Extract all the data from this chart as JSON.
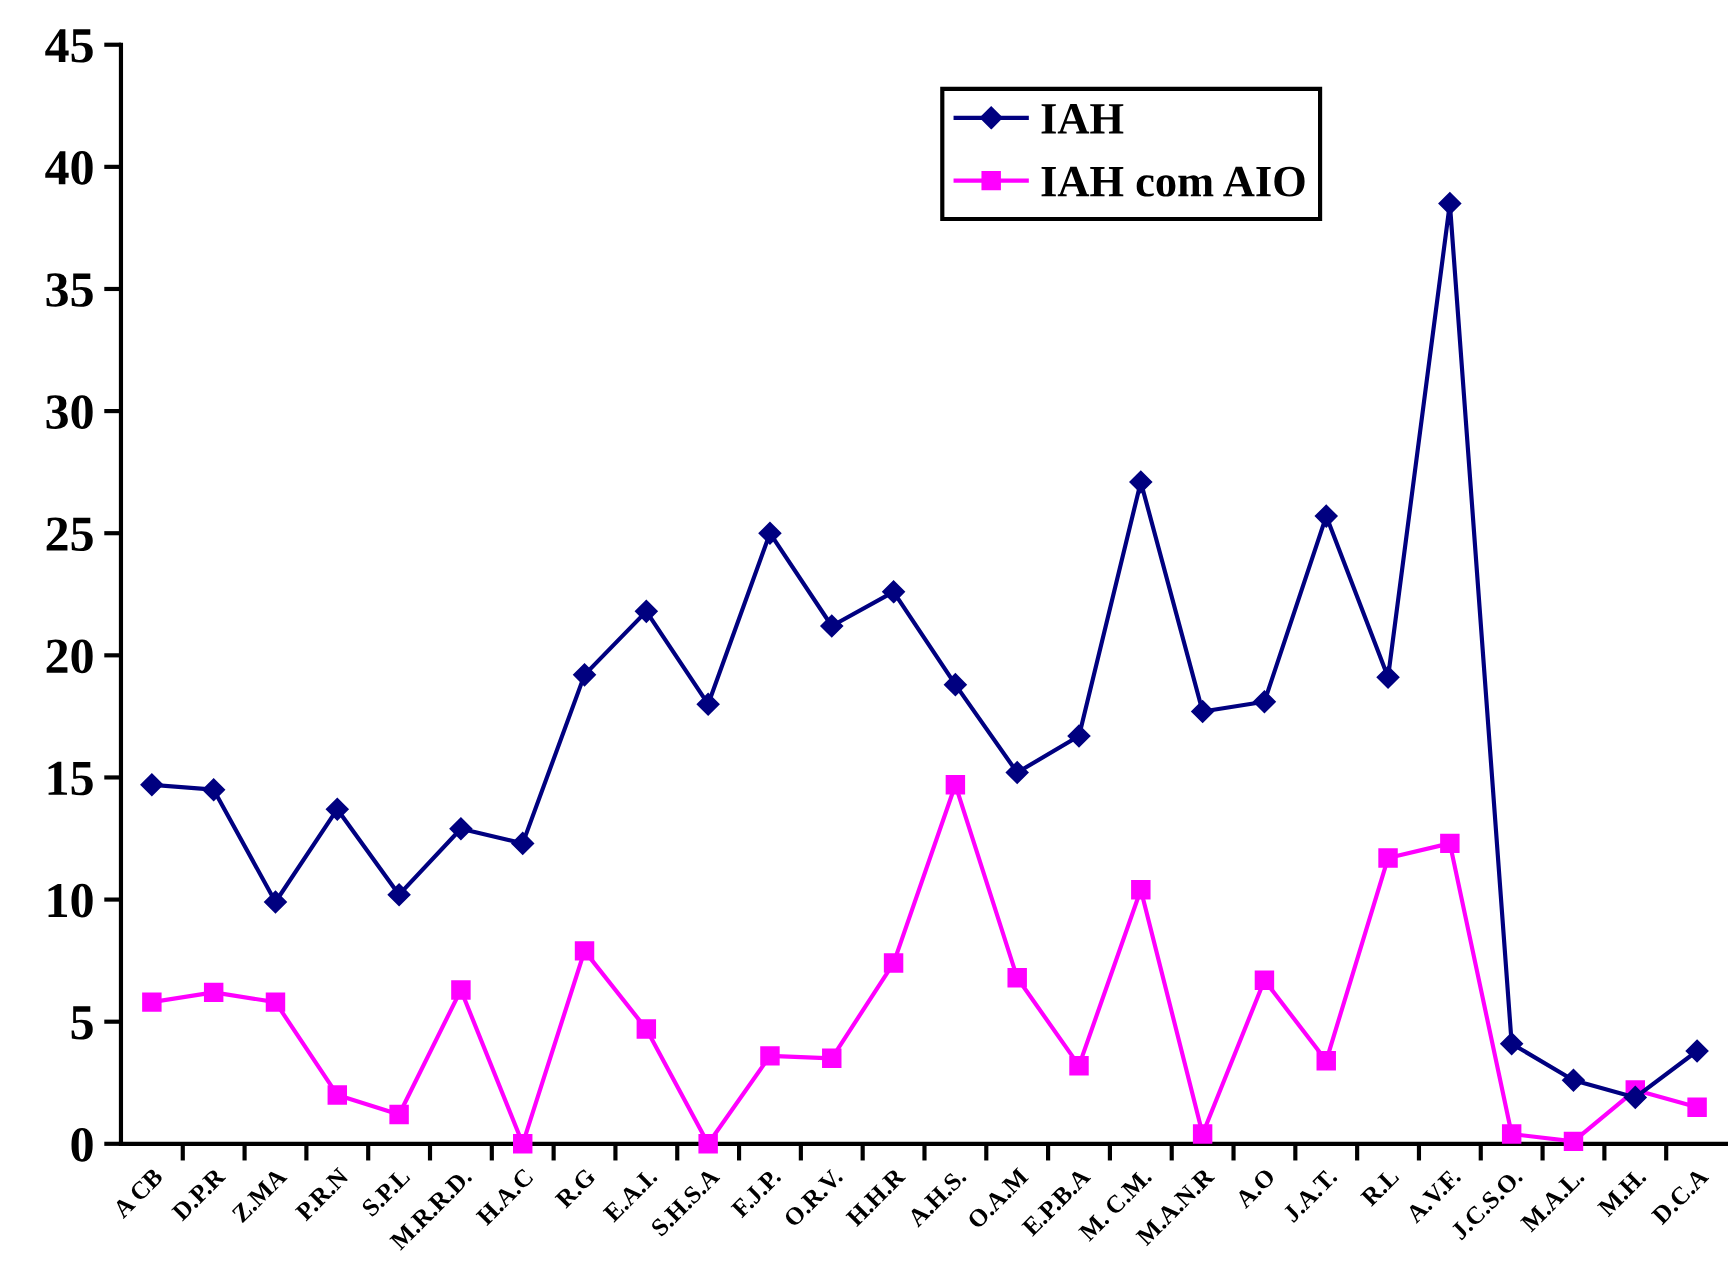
{
  "chart_data": {
    "type": "line",
    "categories": [
      "A CB",
      "D.P.R",
      "Z.MA",
      "P.R.N",
      "S.P.L",
      "M.R.R.D.",
      "H.A.C",
      "R.G",
      "E.A.I.",
      "S.H.S.A",
      "F.J.P.",
      "O.R.V.",
      "H.H.R",
      "A.H.S.",
      "O.A.M",
      "E.P.B.A",
      "M. C.M.",
      "M.A.N.R",
      "A.O",
      "J.A.T.",
      "R.L",
      "A.V.F.",
      "J.C.S.O.",
      "M.A.L.",
      "M.H.",
      "D.C.A"
    ],
    "series": [
      {
        "name": "IAH",
        "color": "#000080",
        "marker": "diamond",
        "values": [
          14.7,
          14.5,
          9.9,
          13.7,
          10.2,
          12.9,
          12.3,
          19.2,
          21.8,
          18.0,
          25.0,
          21.2,
          22.6,
          18.8,
          15.2,
          16.7,
          27.1,
          17.7,
          18.1,
          25.7,
          19.1,
          38.5,
          4.1,
          2.6,
          1.9,
          3.8
        ]
      },
      {
        "name": "IAH com AIO",
        "color": "#ff00ff",
        "marker": "square",
        "values": [
          5.8,
          6.2,
          5.8,
          2.0,
          1.2,
          6.3,
          0,
          7.9,
          4.7,
          0,
          3.6,
          3.5,
          7.4,
          14.7,
          6.8,
          3.2,
          10.4,
          0.4,
          6.7,
          3.4,
          11.7,
          12.3,
          0.4,
          0.1,
          2.2,
          1.5
        ]
      }
    ],
    "ylim": [
      0,
      45
    ],
    "yticks": [
      0,
      5,
      10,
      15,
      20,
      25,
      30,
      35,
      40,
      45
    ],
    "grid": false,
    "legend": "top right",
    "line_style": "solid"
  }
}
